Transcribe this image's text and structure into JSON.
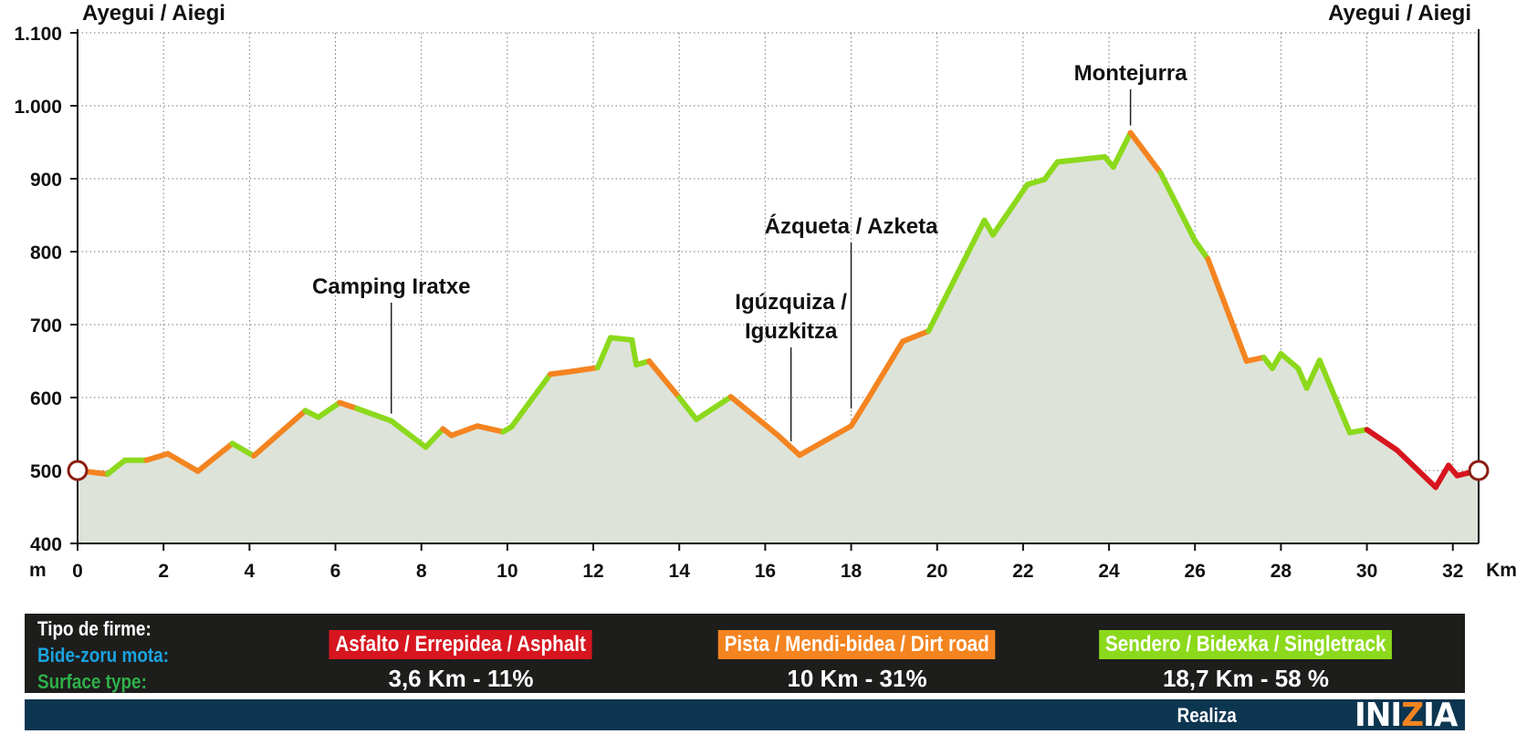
{
  "chart_data": {
    "type": "area",
    "title": "",
    "start_label": "Ayegui / Aiegi",
    "end_label": "Ayegui / Aiegi",
    "y_unit": "m",
    "x_unit": "Km",
    "ylim": [
      400,
      1100
    ],
    "xlim": [
      0,
      32.6
    ],
    "y_ticks": [
      {
        "v": 400,
        "label": "400"
      },
      {
        "v": 500,
        "label": "500"
      },
      {
        "v": 600,
        "label": "600"
      },
      {
        "v": 700,
        "label": "700"
      },
      {
        "v": 800,
        "label": "800"
      },
      {
        "v": 900,
        "label": "900"
      },
      {
        "v": 1000,
        "label": "1.000"
      },
      {
        "v": 1100,
        "label": "1.100"
      }
    ],
    "x_ticks": [
      0,
      2,
      4,
      6,
      8,
      10,
      12,
      14,
      16,
      18,
      20,
      22,
      24,
      26,
      28,
      30,
      32
    ],
    "grid": "dotted",
    "fill_color": "#dde3d9",
    "profile": [
      {
        "x": 0.0,
        "y": 500,
        "s": "dirt"
      },
      {
        "x": 0.7,
        "y": 495,
        "s": "dirt"
      },
      {
        "x": 0.8,
        "y": 500,
        "s": "trail"
      },
      {
        "x": 1.1,
        "y": 514,
        "s": "trail"
      },
      {
        "x": 1.6,
        "y": 514,
        "s": "trail"
      },
      {
        "x": 2.1,
        "y": 523,
        "s": "dirt"
      },
      {
        "x": 2.8,
        "y": 499,
        "s": "dirt"
      },
      {
        "x": 3.6,
        "y": 537,
        "s": "dirt"
      },
      {
        "x": 4.1,
        "y": 520,
        "s": "trail"
      },
      {
        "x": 5.3,
        "y": 582,
        "s": "dirt"
      },
      {
        "x": 5.6,
        "y": 573,
        "s": "trail"
      },
      {
        "x": 6.1,
        "y": 593,
        "s": "trail"
      },
      {
        "x": 6.5,
        "y": 585,
        "s": "dirt"
      },
      {
        "x": 7.3,
        "y": 568,
        "s": "trail"
      },
      {
        "x": 8.1,
        "y": 532,
        "s": "trail"
      },
      {
        "x": 8.5,
        "y": 557,
        "s": "trail"
      },
      {
        "x": 8.7,
        "y": 548,
        "s": "dirt"
      },
      {
        "x": 9.3,
        "y": 561,
        "s": "dirt"
      },
      {
        "x": 9.9,
        "y": 553,
        "s": "dirt"
      },
      {
        "x": 10.1,
        "y": 560,
        "s": "trail"
      },
      {
        "x": 11.0,
        "y": 632,
        "s": "trail"
      },
      {
        "x": 11.4,
        "y": 635,
        "s": "dirt"
      },
      {
        "x": 12.1,
        "y": 641,
        "s": "dirt"
      },
      {
        "x": 12.4,
        "y": 682,
        "s": "trail"
      },
      {
        "x": 12.9,
        "y": 679,
        "s": "trail"
      },
      {
        "x": 13.0,
        "y": 645,
        "s": "trail"
      },
      {
        "x": 13.3,
        "y": 650,
        "s": "trail"
      },
      {
        "x": 14.0,
        "y": 600,
        "s": "dirt"
      },
      {
        "x": 14.4,
        "y": 570,
        "s": "trail"
      },
      {
        "x": 15.2,
        "y": 601,
        "s": "trail"
      },
      {
        "x": 16.3,
        "y": 548,
        "s": "dirt"
      },
      {
        "x": 16.8,
        "y": 521,
        "s": "dirt"
      },
      {
        "x": 18.0,
        "y": 561,
        "s": "dirt"
      },
      {
        "x": 18.4,
        "y": 599,
        "s": "dirt"
      },
      {
        "x": 19.2,
        "y": 677,
        "s": "dirt"
      },
      {
        "x": 19.8,
        "y": 691,
        "s": "dirt"
      },
      {
        "x": 21.1,
        "y": 843,
        "s": "trail"
      },
      {
        "x": 21.3,
        "y": 823,
        "s": "trail"
      },
      {
        "x": 22.1,
        "y": 892,
        "s": "trail"
      },
      {
        "x": 22.5,
        "y": 899,
        "s": "trail"
      },
      {
        "x": 22.8,
        "y": 923,
        "s": "trail"
      },
      {
        "x": 23.9,
        "y": 930,
        "s": "trail"
      },
      {
        "x": 24.1,
        "y": 916,
        "s": "trail"
      },
      {
        "x": 24.5,
        "y": 963,
        "s": "trail"
      },
      {
        "x": 25.2,
        "y": 908,
        "s": "dirt"
      },
      {
        "x": 26.0,
        "y": 815,
        "s": "trail"
      },
      {
        "x": 26.3,
        "y": 790,
        "s": "trail"
      },
      {
        "x": 27.2,
        "y": 650,
        "s": "dirt"
      },
      {
        "x": 27.6,
        "y": 655,
        "s": "dirt"
      },
      {
        "x": 27.8,
        "y": 640,
        "s": "trail"
      },
      {
        "x": 28.0,
        "y": 660,
        "s": "trail"
      },
      {
        "x": 28.4,
        "y": 640,
        "s": "trail"
      },
      {
        "x": 28.6,
        "y": 613,
        "s": "trail"
      },
      {
        "x": 28.9,
        "y": 651,
        "s": "trail"
      },
      {
        "x": 29.6,
        "y": 552,
        "s": "trail"
      },
      {
        "x": 30.0,
        "y": 556,
        "s": "trail"
      },
      {
        "x": 30.2,
        "y": 548,
        "s": "asphalt"
      },
      {
        "x": 30.7,
        "y": 528,
        "s": "asphalt"
      },
      {
        "x": 31.6,
        "y": 477,
        "s": "asphalt"
      },
      {
        "x": 31.9,
        "y": 507,
        "s": "asphalt"
      },
      {
        "x": 32.1,
        "y": 493,
        "s": "asphalt"
      },
      {
        "x": 32.6,
        "y": 500,
        "s": "asphalt"
      }
    ],
    "annotations": [
      {
        "lines": [
          "Camping Iratxe"
        ],
        "x": 7.3,
        "y": 568
      },
      {
        "lines": [
          "Igúzquiza /",
          "Iguzkitza"
        ],
        "x": 16.6,
        "y": 530
      },
      {
        "lines": [
          "Ázqueta / Azketa"
        ],
        "x": 18.0,
        "y": 575
      },
      {
        "lines": [
          "Montejurra"
        ],
        "x": 24.5,
        "y": 963
      }
    ],
    "colors": {
      "asphalt": "#d7151e",
      "dirt": "#f48420",
      "trail": "#8cd91c"
    }
  },
  "legend": {
    "title_es": "Tipo de firme:",
    "title_eu": "Bide-zoru mota:",
    "title_en": "Surface type:",
    "title_colors": {
      "es": "#ffffff",
      "eu": "#1aa3e0",
      "en": "#2eb04a"
    },
    "items": [
      {
        "name": "Asfalto / Errepidea / Asphalt",
        "value": "3,6 Km - 11%",
        "color": "#d7151e"
      },
      {
        "name": "Pista / Mendi-bidea / Dirt road",
        "value": "10 Km - 31%",
        "color": "#f48420"
      },
      {
        "name": "Sendero / Bidexka / Singletrack",
        "value": "18,7 Km - 58 %",
        "color": "#8cd91c"
      }
    ]
  },
  "footer": {
    "realiza": "Realiza",
    "brand": "INIZIA",
    "brand_accent": "#f48420"
  }
}
